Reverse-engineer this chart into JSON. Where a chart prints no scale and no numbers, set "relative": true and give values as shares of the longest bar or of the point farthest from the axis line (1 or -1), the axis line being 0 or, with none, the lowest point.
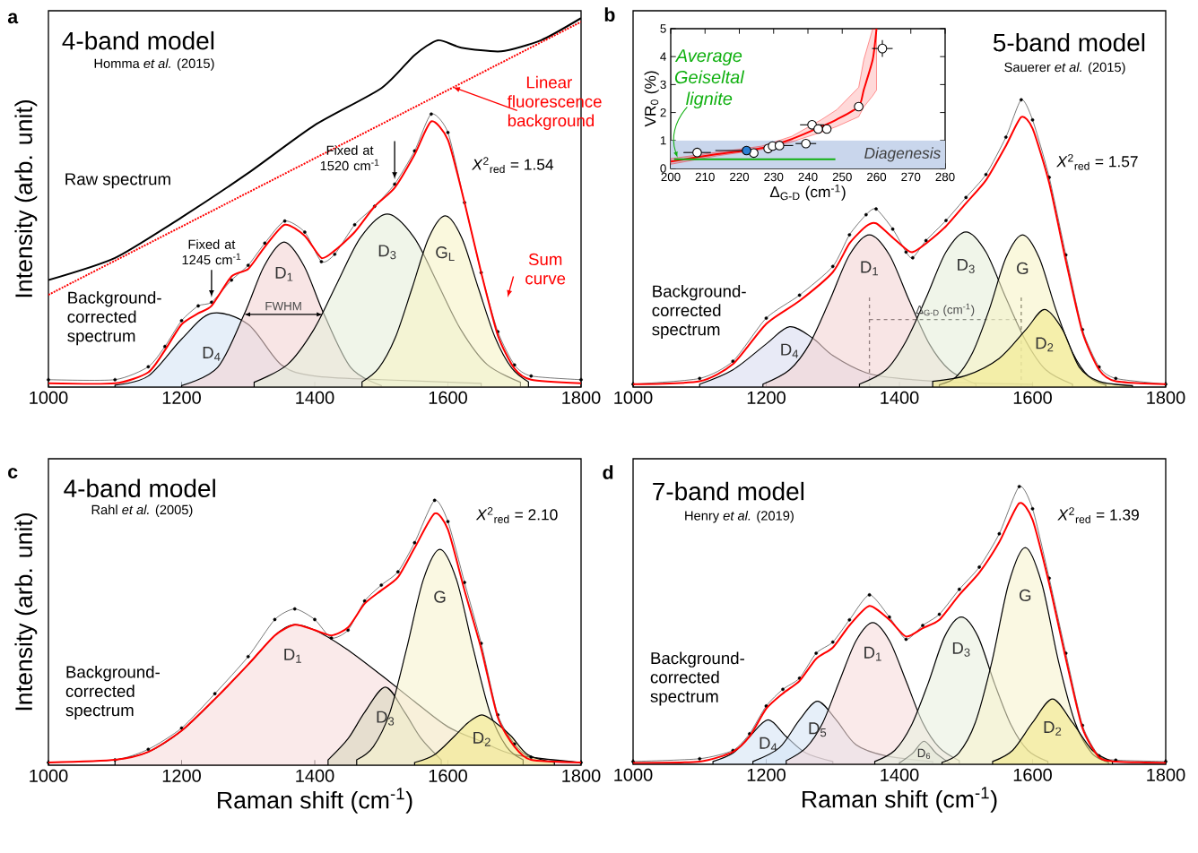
{
  "chart_data": [
    {
      "type": "line",
      "relative": true,
      "title": "4-band model",
      "subtitle": "Homma *et al.* (2015)",
      "ylabel": "Intensity (arb. unit)",
      "xlim": [
        1000,
        1800
      ],
      "xticks": [
        1000,
        1200,
        1400,
        1600,
        1800
      ],
      "tick_labels": "x",
      "annotations": [
        "a",
        "*X*$^{2}$$_{red}$ = 1.54",
        {
          "text": "Fixed at 1245 cm$^{-1}$",
          "x": 1245,
          "y": 0.23
        },
        {
          "text": "Fixed at 1520 cm$^{-1}$",
          "x": 1520,
          "y": 0.55
        },
        {
          "text": "FWHM",
          "x": 1294,
          "y": 0.197
        }
      ],
      "series": [
        {
          "name": "Raw spectrum",
          "color": "#000000",
          "x": [
            1000,
            1100,
            1200,
            1300,
            1400,
            1500,
            1550,
            1585,
            1620,
            1680,
            1740,
            1800
          ],
          "values": [
            0.29,
            0.35,
            0.46,
            0.58,
            0.71,
            0.81,
            0.9,
            0.94,
            0.92,
            0.91,
            0.94,
            1.0
          ]
        },
        {
          "name": "Linear fluorescence background",
          "color": "#ff0000",
          "line_style": "dotted",
          "x": [
            1000,
            1800
          ],
          "values": [
            0.25,
            0.99
          ]
        },
        {
          "name": "D$_{4}$",
          "type": "area",
          "color": "#d6e4f5",
          "x": [
            1100,
            1150,
            1200,
            1245,
            1300,
            1350,
            1400,
            1500,
            1650
          ],
          "values": [
            0.005,
            0.03,
            0.13,
            0.2,
            0.17,
            0.06,
            0.03,
            0.02,
            0.01
          ]
        },
        {
          "name": "D$_{1}$",
          "type": "area",
          "color": "#f3d3d3",
          "x": [
            1200,
            1254,
            1294,
            1324,
            1354,
            1384,
            1414,
            1454,
            1500
          ],
          "values": [
            0.004,
            0.053,
            0.197,
            0.328,
            0.393,
            0.328,
            0.197,
            0.053,
            0.004
          ]
        },
        {
          "name": "D$_{3}$",
          "type": "area",
          "color": "#e6eedb",
          "x": [
            1309,
            1359,
            1399,
            1434,
            1469,
            1509,
            1549,
            1584,
            1619,
            1659,
            1709
          ],
          "values": [
            0.013,
            0.061,
            0.157,
            0.283,
            0.406,
            0.469,
            0.406,
            0.283,
            0.157,
            0.061,
            0.013
          ]
        },
        {
          "name": "G$_{L}$",
          "type": "area",
          "color": "#f6f3c6",
          "x": [
            1471,
            1496,
            1521,
            1546,
            1571,
            1596,
            1621,
            1646,
            1671,
            1696,
            1721
          ],
          "values": [
            0.014,
            0.051,
            0.134,
            0.267,
            0.404,
            0.464,
            0.404,
            0.267,
            0.134,
            0.051,
            0.014
          ]
        },
        {
          "name": "Background-corrected spectrum",
          "color": "#000000",
          "marker": "circle",
          "x": [
            1000,
            1100,
            1150,
            1175,
            1200,
            1225,
            1245,
            1275,
            1300,
            1325,
            1355,
            1385,
            1410,
            1430,
            1460,
            1490,
            1520,
            1550,
            1575,
            1600,
            1625,
            1650,
            1675,
            1700,
            1725,
            1800
          ],
          "values": [
            0.02,
            0.02,
            0.055,
            0.11,
            0.18,
            0.22,
            0.23,
            0.29,
            0.33,
            0.39,
            0.45,
            0.42,
            0.34,
            0.36,
            0.44,
            0.49,
            0.55,
            0.64,
            0.74,
            0.69,
            0.5,
            0.31,
            0.15,
            0.06,
            0.03,
            0.02
          ]
        },
        {
          "name": "Sum curve",
          "color": "#ff0000",
          "x": [
            1000,
            1100,
            1150,
            1175,
            1200,
            1225,
            1245,
            1275,
            1300,
            1325,
            1355,
            1385,
            1410,
            1430,
            1460,
            1490,
            1520,
            1550,
            1575,
            1600,
            1625,
            1650,
            1675,
            1700,
            1725,
            1800
          ],
          "values": [
            0.01,
            0.01,
            0.04,
            0.1,
            0.17,
            0.2,
            0.22,
            0.3,
            0.32,
            0.38,
            0.44,
            0.41,
            0.35,
            0.37,
            0.42,
            0.49,
            0.54,
            0.63,
            0.72,
            0.67,
            0.5,
            0.31,
            0.14,
            0.05,
            0.02,
            0.01
          ]
        }
      ]
    },
    {
      "type": "line",
      "relative": true,
      "title": "5-band model",
      "subtitle": "Sauerer *et al.* (2015)",
      "xlim": [
        1000,
        1800
      ],
      "xticks": [
        1000,
        1200,
        1400,
        1600,
        1800
      ],
      "tick_labels": "x",
      "annotations": [
        "b",
        "*X*$^{2}$$_{red}$ = 1.57",
        "Δ$_{G-D}$ (cm$^{-1}$)"
      ],
      "ref_lines": [
        {
          "axis": "x",
          "value": 1355,
          "line_style": "dashed"
        },
        {
          "axis": "x",
          "value": 1583,
          "line_style": "dashed"
        },
        {
          "axis": "y",
          "value": 0.235,
          "line_style": "dashed"
        }
      ],
      "series": [
        {
          "name": "D$_{4}$",
          "type": "area",
          "color": "#d9dcf0",
          "x": [
            1100,
            1150,
            1200,
            1235,
            1270,
            1300,
            1350,
            1400,
            1500,
            1600
          ],
          "values": [
            0.01,
            0.06,
            0.15,
            0.21,
            0.17,
            0.11,
            0.05,
            0.03,
            0.015,
            0.01
          ]
        },
        {
          "name": "D$_{1}$",
          "type": "area",
          "color": "#f3d3d3",
          "x": [
            1195,
            1235,
            1265,
            1295,
            1325,
            1355,
            1385,
            1415,
            1445,
            1475,
            1515
          ],
          "values": [
            0.01,
            0.06,
            0.15,
            0.3,
            0.46,
            0.53,
            0.46,
            0.3,
            0.15,
            0.06,
            0.01
          ]
        },
        {
          "name": "D$_{3}$",
          "type": "area",
          "color": "#e6eedb",
          "x": [
            1340,
            1380,
            1410,
            1440,
            1470,
            1500,
            1530,
            1560,
            1590,
            1620,
            1660
          ],
          "values": [
            0.01,
            0.06,
            0.16,
            0.31,
            0.47,
            0.54,
            0.47,
            0.31,
            0.16,
            0.06,
            0.01
          ]
        },
        {
          "name": "G",
          "type": "area",
          "color": "#f6f3c6",
          "x": [
            1460,
            1485,
            1510,
            1535,
            1560,
            1585,
            1610,
            1635,
            1660,
            1685,
            1710
          ],
          "values": [
            0.008,
            0.035,
            0.12,
            0.27,
            0.45,
            0.53,
            0.45,
            0.27,
            0.12,
            0.035,
            0.008
          ]
        },
        {
          "name": "D$_{2}$",
          "type": "area",
          "color": "#f2e98a",
          "x": [
            1450,
            1500,
            1550,
            1590,
            1618,
            1645,
            1670,
            1700,
            1750
          ],
          "values": [
            0.02,
            0.04,
            0.1,
            0.2,
            0.27,
            0.2,
            0.07,
            0.02,
            0.005
          ]
        },
        {
          "name": "Background-corrected spectrum",
          "color": "#000000",
          "marker": "circle",
          "x": [
            1000,
            1100,
            1150,
            1200,
            1250,
            1300,
            1325,
            1350,
            1365,
            1390,
            1410,
            1420,
            1440,
            1470,
            1500,
            1530,
            1560,
            1583,
            1600,
            1625,
            1650,
            1675,
            1700,
            1725,
            1800
          ],
          "values": [
            0.01,
            0.03,
            0.09,
            0.24,
            0.32,
            0.42,
            0.53,
            0.6,
            0.62,
            0.55,
            0.47,
            0.45,
            0.51,
            0.58,
            0.66,
            0.74,
            0.87,
            1.0,
            0.93,
            0.73,
            0.46,
            0.2,
            0.07,
            0.03,
            0.01
          ]
        },
        {
          "color": "#ff0000",
          "x": [
            1000,
            1100,
            1150,
            1200,
            1250,
            1300,
            1325,
            1350,
            1365,
            1390,
            1410,
            1420,
            1440,
            1470,
            1500,
            1530,
            1560,
            1583,
            1600,
            1625,
            1650,
            1675,
            1700,
            1725,
            1800
          ],
          "values": [
            0.01,
            0.02,
            0.08,
            0.22,
            0.3,
            0.4,
            0.5,
            0.56,
            0.57,
            0.52,
            0.48,
            0.47,
            0.5,
            0.56,
            0.64,
            0.72,
            0.84,
            0.94,
            0.9,
            0.71,
            0.44,
            0.19,
            0.06,
            0.02,
            0.01
          ]
        }
      ]
    },
    {
      "type": "scatter",
      "xlabel": "Δ$_{G-D}$ (cm$^{-1}$)",
      "ylabel": "VR$_{0}$ (%)",
      "xlim": [
        200,
        280
      ],
      "xticks": [
        200,
        210,
        220,
        230,
        240,
        250,
        260,
        270,
        280
      ],
      "ylim": [
        0,
        5
      ],
      "yticks": [
        0,
        1,
        2,
        3,
        4,
        5
      ],
      "bands": [
        {
          "axis": "y",
          "from": 0,
          "to": 1,
          "label": "Diagenesis",
          "color": "#c9d6ec"
        }
      ],
      "series": [
        {
          "type": "line",
          "color": "#ff0000",
          "x": [
            200,
            213.5,
            226.6,
            235.3,
            244,
            248.4,
            254.8,
            256.3,
            258.9,
            260
          ],
          "values": [
            0.25,
            0.51,
            0.73,
            1.05,
            1.5,
            1.75,
            2.21,
            2.82,
            3.9,
            5.0
          ],
          "lower": [
            0.15,
            0.45,
            0.68,
            0.95,
            1.3,
            1.5,
            1.85,
            2.2,
            2.6,
            2.8
          ],
          "upper": [
            0.35,
            0.58,
            0.8,
            1.15,
            1.75,
            2.1,
            2.9,
            3.9,
            5.0,
            5.0
          ]
        },
        {
          "name": "Average Geiseltal lignite",
          "type": "line",
          "color": "#10b010",
          "x": [
            201,
            248
          ],
          "values": [
            0.33,
            0.33
          ]
        },
        {
          "color": "#ffffff",
          "marker": "circle",
          "x": [
            207.7,
            224.2,
            228.4,
            229.7,
            231.7,
            239.4,
            241.2,
            243,
            245.5,
            254.8,
            261.7
          ],
          "values": [
            0.57,
            0.55,
            0.71,
            0.8,
            0.82,
            0.89,
            1.56,
            1.41,
            1.41,
            2.21,
            4.29
          ],
          "xerrors": [
            4,
            null,
            null,
            null,
            4,
            3,
            3.5,
            null,
            null,
            null,
            3
          ],
          "errors": [
            null,
            null,
            null,
            null,
            null,
            null,
            null,
            null,
            null,
            null,
            0.3
          ]
        },
        {
          "color": "#2a7fd4",
          "marker": "circle",
          "x": [
            222.1
          ],
          "values": [
            0.64
          ],
          "xerrors": [
            [
              213,
              222.1
            ]
          ]
        }
      ]
    },
    {
      "type": "line",
      "relative": true,
      "title": "4-band model",
      "subtitle": "Rahl *et al.* (2005)",
      "xlabel": "Raman shift (cm$^{-1}$)",
      "ylabel": "Intensity (arb. unit)",
      "xlim": [
        1000,
        1800
      ],
      "xticks": [
        1000,
        1200,
        1400,
        1600,
        1800
      ],
      "tick_labels": "x",
      "annotations": [
        "c",
        "*X*$^{2}$$_{red}$ = 2.10"
      ],
      "series": [
        {
          "name": "D$_{1}$",
          "type": "area",
          "color": "#f6dcdc",
          "x": [
            1100,
            1150,
            1200,
            1250,
            1300,
            1340,
            1367,
            1400,
            1447,
            1500,
            1550,
            1600,
            1650,
            1700,
            1800
          ],
          "values": [
            0.02,
            0.05,
            0.13,
            0.25,
            0.38,
            0.49,
            0.53,
            0.51,
            0.44,
            0.34,
            0.24,
            0.145,
            0.09,
            0.04,
            0.01
          ]
        },
        {
          "name": "D$_{3}$",
          "type": "area",
          "color": "#d8d6bd",
          "x": [
            1420,
            1450,
            1475,
            1506,
            1535,
            1560,
            1590
          ],
          "values": [
            0.02,
            0.1,
            0.2,
            0.295,
            0.2,
            0.1,
            0.02
          ]
        },
        {
          "name": "G",
          "type": "area",
          "color": "#f6f3cf",
          "x": [
            1463,
            1488,
            1513,
            1538,
            1563,
            1588,
            1613,
            1638,
            1663,
            1688,
            1713
          ],
          "values": [
            0.02,
            0.07,
            0.2,
            0.44,
            0.7,
            0.815,
            0.7,
            0.44,
            0.2,
            0.07,
            0.02
          ]
        },
        {
          "name": "D$_{2}$",
          "type": "area",
          "color": "#f2e88a",
          "x": [
            1550,
            1580,
            1610,
            1630,
            1651,
            1672,
            1695,
            1720,
            1760
          ],
          "values": [
            0.01,
            0.04,
            0.11,
            0.16,
            0.19,
            0.16,
            0.11,
            0.04,
            0.01
          ]
        },
        {
          "name": "Background-corrected spectrum",
          "color": "#000000",
          "marker": "circle",
          "x": [
            1000,
            1100,
            1150,
            1200,
            1250,
            1300,
            1340,
            1370,
            1400,
            1425,
            1450,
            1475,
            1500,
            1525,
            1550,
            1580,
            1600,
            1625,
            1650,
            1675,
            1700,
            1725,
            1800
          ],
          "values": [
            0.01,
            0.02,
            0.06,
            0.14,
            0.27,
            0.41,
            0.55,
            0.59,
            0.55,
            0.48,
            0.51,
            0.62,
            0.68,
            0.73,
            0.84,
            1.0,
            0.92,
            0.69,
            0.46,
            0.19,
            0.08,
            0.03,
            0.01
          ]
        },
        {
          "color": "#ff0000",
          "x": [
            1000,
            1100,
            1150,
            1200,
            1250,
            1300,
            1340,
            1370,
            1400,
            1425,
            1450,
            1475,
            1500,
            1525,
            1550,
            1580,
            1600,
            1625,
            1650,
            1675,
            1700,
            1725,
            1800
          ],
          "values": [
            0.01,
            0.02,
            0.05,
            0.13,
            0.25,
            0.38,
            0.49,
            0.53,
            0.51,
            0.49,
            0.52,
            0.61,
            0.66,
            0.71,
            0.82,
            0.95,
            0.89,
            0.66,
            0.44,
            0.18,
            0.07,
            0.02,
            0.01
          ]
        }
      ]
    },
    {
      "type": "line",
      "relative": true,
      "title": "7-band model",
      "subtitle": "Henry *et al.* (2019)",
      "xlabel": "Raman shift (cm$^{-1}$)",
      "xlim": [
        1000,
        1800
      ],
      "xticks": [
        1000,
        1200,
        1400,
        1600,
        1800
      ],
      "tick_labels": "x",
      "annotations": [
        "d",
        "*X*$^{2}$$_{red}$ = 1.39"
      ],
      "series": [
        {
          "name": "D$_{4}$",
          "type": "area",
          "color": "#d6e4f5",
          "x": [
            1120,
            1150,
            1175,
            1203,
            1230,
            1260,
            1300
          ],
          "values": [
            0.01,
            0.04,
            0.1,
            0.16,
            0.1,
            0.04,
            0.01
          ]
        },
        {
          "name": "D$_{5}$",
          "type": "area",
          "color": "#d6e4f5",
          "x": [
            1180,
            1220,
            1250,
            1277,
            1305,
            1335,
            1380,
            1450
          ],
          "values": [
            0.01,
            0.06,
            0.16,
            0.227,
            0.16,
            0.07,
            0.03,
            0.01
          ]
        },
        {
          "name": "D$_{1}$",
          "type": "area",
          "color": "#f6dcdc",
          "x": [
            1230,
            1260,
            1285,
            1310,
            1335,
            1360,
            1385,
            1410,
            1435,
            1460,
            1490
          ],
          "values": [
            0.013,
            0.06,
            0.15,
            0.3,
            0.445,
            0.51,
            0.445,
            0.3,
            0.15,
            0.06,
            0.013
          ]
        },
        {
          "name": "D$_{6}$",
          "type": "area",
          "color": "#d8d8cc",
          "x": [
            1400,
            1420,
            1437,
            1455,
            1475
          ],
          "values": [
            0.005,
            0.04,
            0.083,
            0.04,
            0.005
          ]
        },
        {
          "name": "D$_{3}$",
          "type": "area",
          "color": "#e9f0df",
          "x": [
            1363,
            1393,
            1418,
            1443,
            1468,
            1493,
            1518,
            1543,
            1568,
            1593,
            1623
          ],
          "values": [
            0.01,
            0.05,
            0.14,
            0.29,
            0.46,
            0.53,
            0.46,
            0.29,
            0.14,
            0.05,
            0.01
          ]
        },
        {
          "name": "G",
          "type": "area",
          "color": "#f6f3cf",
          "x": [
            1464,
            1489,
            1514,
            1539,
            1564,
            1589,
            1614,
            1639,
            1664,
            1689,
            1714
          ],
          "values": [
            0.007,
            0.04,
            0.15,
            0.37,
            0.65,
            0.78,
            0.65,
            0.37,
            0.15,
            0.04,
            0.007
          ]
        },
        {
          "name": "D$_{2}$",
          "type": "area",
          "color": "#f2e88a",
          "x": [
            1540,
            1570,
            1600,
            1630,
            1660,
            1690,
            1720
          ],
          "values": [
            0.01,
            0.05,
            0.15,
            0.235,
            0.15,
            0.05,
            0.01
          ]
        },
        {
          "name": "Background-corrected spectrum",
          "color": "#000000",
          "marker": "circle",
          "x": [
            1000,
            1100,
            1150,
            1175,
            1200,
            1225,
            1250,
            1275,
            1300,
            1325,
            1355,
            1385,
            1410,
            1435,
            1460,
            1490,
            1520,
            1550,
            1580,
            1600,
            1625,
            1650,
            1675,
            1700,
            1725,
            1800
          ],
          "values": [
            0.01,
            0.02,
            0.05,
            0.11,
            0.21,
            0.27,
            0.31,
            0.4,
            0.44,
            0.52,
            0.61,
            0.53,
            0.45,
            0.5,
            0.54,
            0.63,
            0.71,
            0.83,
            1.0,
            0.92,
            0.67,
            0.4,
            0.14,
            0.03,
            0.015,
            0.01
          ]
        },
        {
          "color": "#ff0000",
          "x": [
            1000,
            1100,
            1150,
            1175,
            1200,
            1225,
            1250,
            1275,
            1300,
            1325,
            1355,
            1385,
            1410,
            1435,
            1460,
            1490,
            1520,
            1550,
            1580,
            1600,
            1625,
            1650,
            1675,
            1700,
            1725,
            1800
          ],
          "values": [
            0.005,
            0.01,
            0.045,
            0.1,
            0.2,
            0.255,
            0.3,
            0.38,
            0.42,
            0.5,
            0.57,
            0.52,
            0.46,
            0.49,
            0.52,
            0.61,
            0.69,
            0.8,
            0.94,
            0.88,
            0.65,
            0.38,
            0.13,
            0.025,
            0.01,
            0.005
          ]
        }
      ]
    }
  ]
}
